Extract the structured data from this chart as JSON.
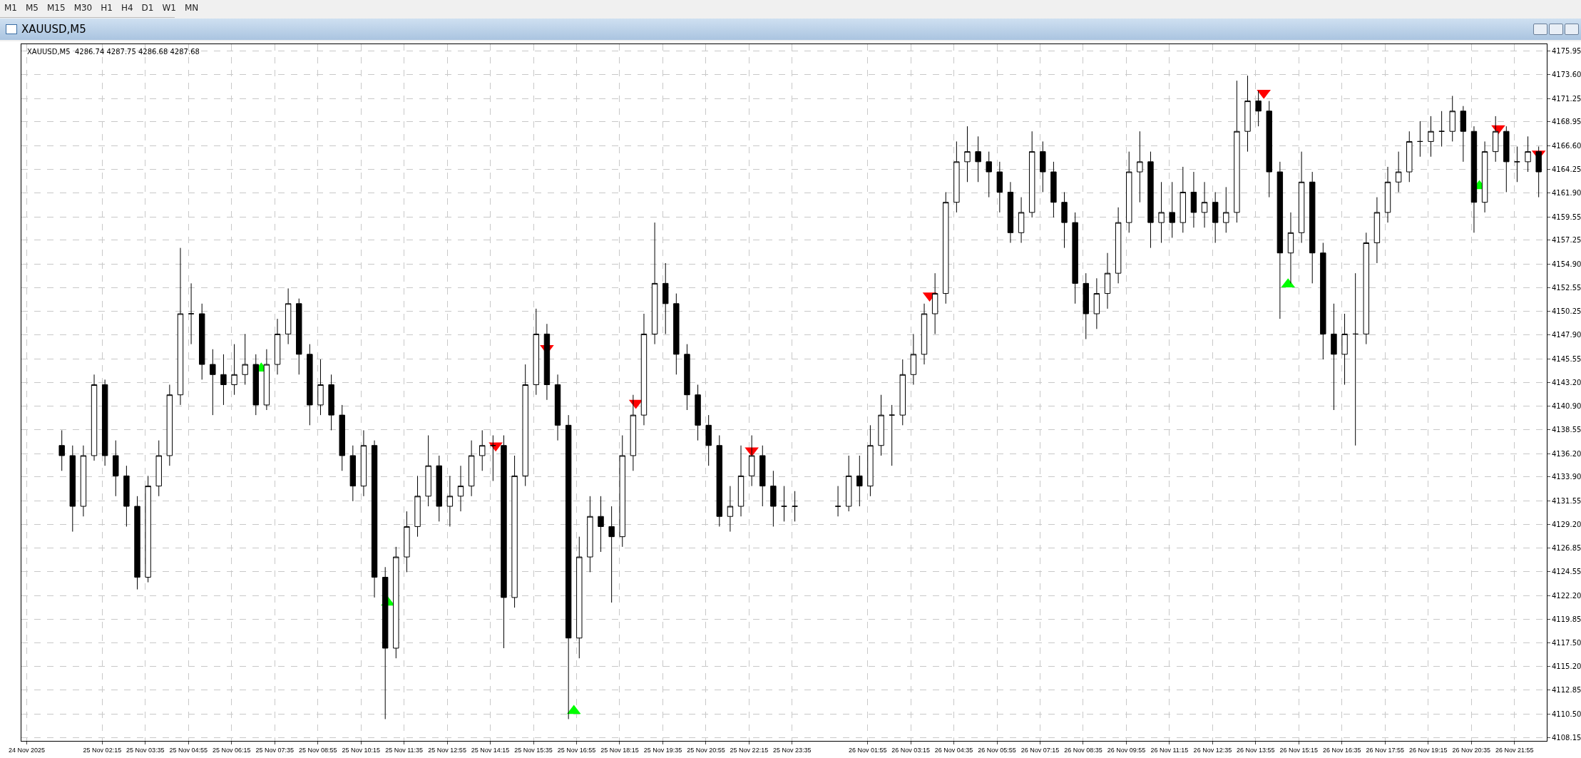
{
  "chart_data": {
    "type": "candlestick",
    "title": "XAUUSD,M5",
    "subtitle": "XAUUSD,M5  4286.74 4287.75 4286.68 4287.68",
    "annotations": [
      "M1",
      "M5",
      "M15",
      "M30",
      "H1",
      "H4",
      "D1",
      "W1",
      "MN"
    ],
    "grid": true,
    "xlim": [
      "2025-11-24T23:45",
      "2025-11-26T22:55"
    ],
    "xticks": [
      {
        "value": "2025-11-24T23:55",
        "label": "24 Nov 2025"
      },
      {
        "value": "2025-11-25T02:15",
        "label": "25 Nov 02:15"
      },
      {
        "value": "2025-11-25T03:35",
        "label": "25 Nov 03:35"
      },
      {
        "value": "2025-11-25T04:55",
        "label": "25 Nov 04:55"
      },
      {
        "value": "2025-11-25T06:15",
        "label": "25 Nov 06:15"
      },
      {
        "value": "2025-11-25T07:35",
        "label": "25 Nov 07:35"
      },
      {
        "value": "2025-11-25T08:55",
        "label": "25 Nov 08:55"
      },
      {
        "value": "2025-11-25T10:15",
        "label": "25 Nov 10:15"
      },
      {
        "value": "2025-11-25T11:35",
        "label": "25 Nov 11:35"
      },
      {
        "value": "2025-11-25T12:55",
        "label": "25 Nov 12:55"
      },
      {
        "value": "2025-11-25T14:15",
        "label": "25 Nov 14:15"
      },
      {
        "value": "2025-11-25T15:35",
        "label": "25 Nov 15:35"
      },
      {
        "value": "2025-11-25T16:55",
        "label": "25 Nov 16:55"
      },
      {
        "value": "2025-11-25T18:15",
        "label": "25 Nov 18:15"
      },
      {
        "value": "2025-11-25T19:35",
        "label": "25 Nov 19:35"
      },
      {
        "value": "2025-11-25T20:55",
        "label": "25 Nov 20:55"
      },
      {
        "value": "2025-11-25T22:15",
        "label": "25 Nov 22:15"
      },
      {
        "value": "2025-11-25T23:35",
        "label": "25 Nov 23:35"
      },
      {
        "value": "2025-11-26T01:55",
        "label": "26 Nov 01:55"
      },
      {
        "value": "2025-11-26T03:15",
        "label": "26 Nov 03:15"
      },
      {
        "value": "2025-11-26T04:35",
        "label": "26 Nov 04:35"
      },
      {
        "value": "2025-11-26T05:55",
        "label": "26 Nov 05:55"
      },
      {
        "value": "2025-11-26T07:15",
        "label": "26 Nov 07:15"
      },
      {
        "value": "2025-11-26T08:35",
        "label": "26 Nov 08:35"
      },
      {
        "value": "2025-11-26T09:55",
        "label": "26 Nov 09:55"
      },
      {
        "value": "2025-11-26T11:15",
        "label": "26 Nov 11:15"
      },
      {
        "value": "2025-11-26T12:35",
        "label": "26 Nov 12:35"
      },
      {
        "value": "2025-11-26T13:55",
        "label": "26 Nov 13:55"
      },
      {
        "value": "2025-11-26T15:15",
        "label": "26 Nov 15:15"
      },
      {
        "value": "2025-11-26T16:35",
        "label": "26 Nov 16:35"
      },
      {
        "value": "2025-11-26T17:55",
        "label": "26 Nov 17:55"
      },
      {
        "value": "2025-11-26T19:15",
        "label": "26 Nov 19:15"
      },
      {
        "value": "2025-11-26T20:35",
        "label": "26 Nov 20:35"
      },
      {
        "value": "2025-11-26T21:55",
        "label": "26 Nov 21:55"
      }
    ],
    "ylim": [
      4107.85,
      4176.6
    ],
    "yticks": [
      4175.95,
      {
        "value": 4173.6,
        "label": "4173.60"
      },
      4171.25,
      4168.95,
      {
        "value": 4166.6,
        "label": "4166.60"
      },
      4164.25,
      {
        "value": 4161.9,
        "label": "4161.90"
      },
      4159.55,
      4157.25,
      {
        "value": 4154.9,
        "label": "4154.90"
      },
      4152.55,
      4150.25,
      {
        "value": 4147.9,
        "label": "4147.90"
      },
      4145.55,
      {
        "value": 4143.2,
        "label": "4143.20"
      },
      {
        "value": 4140.9,
        "label": "4140.90"
      },
      4138.55,
      {
        "value": 4136.2,
        "label": "4136.20"
      },
      {
        "value": 4133.9,
        "label": "4133.90"
      },
      4131.55,
      {
        "value": 4129.2,
        "label": "4129.20"
      },
      4126.85,
      4124.55,
      {
        "value": 4122.2,
        "label": "4122.20"
      },
      4119.85,
      {
        "value": 4117.5,
        "label": "4117.50"
      },
      {
        "value": 4115.2,
        "label": "4115.20"
      },
      4112.85,
      {
        "value": 4110.5,
        "label": "4110.50"
      },
      4108.15
    ],
    "series": [
      {
        "color": "#000000",
        "x": [
          "2025-11-25T01:00",
          "2025-11-25T01:20",
          "2025-11-25T01:40",
          "2025-11-25T02:00",
          "2025-11-25T02:20",
          "2025-11-25T02:40",
          "2025-11-25T03:00",
          "2025-11-25T03:20",
          "2025-11-25T03:40",
          "2025-11-25T04:00",
          "2025-11-25T04:20",
          "2025-11-25T04:40",
          "2025-11-25T05:00",
          "2025-11-25T05:20",
          "2025-11-25T05:40",
          "2025-11-25T06:00",
          "2025-11-25T06:20",
          "2025-11-25T06:40",
          "2025-11-25T07:00",
          "2025-11-25T07:20",
          "2025-11-25T07:40",
          "2025-11-25T08:00",
          "2025-11-25T08:20",
          "2025-11-25T08:40",
          "2025-11-25T09:00",
          "2025-11-25T09:20",
          "2025-11-25T09:40",
          "2025-11-25T10:00",
          "2025-11-25T10:20",
          "2025-11-25T10:40",
          "2025-11-25T11:00",
          "2025-11-25T11:20",
          "2025-11-25T11:40",
          "2025-11-25T12:00",
          "2025-11-25T12:20",
          "2025-11-25T12:40",
          "2025-11-25T13:00",
          "2025-11-25T13:20",
          "2025-11-25T13:40",
          "2025-11-25T14:00",
          "2025-11-25T14:20",
          "2025-11-25T14:40",
          "2025-11-25T15:00",
          "2025-11-25T15:20",
          "2025-11-25T15:40",
          "2025-11-25T16:00",
          "2025-11-25T16:20",
          "2025-11-25T16:40",
          "2025-11-25T17:00",
          "2025-11-25T17:20",
          "2025-11-25T17:40",
          "2025-11-25T18:00",
          "2025-11-25T18:20",
          "2025-11-25T18:40",
          "2025-11-25T19:00",
          "2025-11-25T19:20",
          "2025-11-25T19:40",
          "2025-11-25T20:00",
          "2025-11-25T20:20",
          "2025-11-25T20:40",
          "2025-11-25T21:00",
          "2025-11-25T21:20",
          "2025-11-25T21:40",
          "2025-11-25T22:00",
          "2025-11-25T22:20",
          "2025-11-25T22:40",
          "2025-11-25T23:00",
          "2025-11-25T23:20",
          "2025-11-25T23:40",
          "2025-11-26T01:00",
          "2025-11-26T01:20",
          "2025-11-26T01:40",
          "2025-11-26T02:00",
          "2025-11-26T02:20",
          "2025-11-26T02:40",
          "2025-11-26T03:00",
          "2025-11-26T03:20",
          "2025-11-26T03:40",
          "2025-11-26T04:00",
          "2025-11-26T04:20",
          "2025-11-26T04:40",
          "2025-11-26T05:00",
          "2025-11-26T05:20",
          "2025-11-26T05:40",
          "2025-11-26T06:00",
          "2025-11-26T06:20",
          "2025-11-26T06:40",
          "2025-11-26T07:00",
          "2025-11-26T07:20",
          "2025-11-26T07:40",
          "2025-11-26T08:00",
          "2025-11-26T08:20",
          "2025-11-26T08:40",
          "2025-11-26T09:00",
          "2025-11-26T09:20",
          "2025-11-26T09:40",
          "2025-11-26T10:00",
          "2025-11-26T10:20",
          "2025-11-26T10:40",
          "2025-11-26T11:00",
          "2025-11-26T11:20",
          "2025-11-26T11:40",
          "2025-11-26T12:00",
          "2025-11-26T12:20",
          "2025-11-26T12:40",
          "2025-11-26T13:00",
          "2025-11-26T13:20",
          "2025-11-26T13:40",
          "2025-11-26T14:00",
          "2025-11-26T14:20",
          "2025-11-26T14:40",
          "2025-11-26T15:00",
          "2025-11-26T15:20",
          "2025-11-26T15:40",
          "2025-11-26T16:00",
          "2025-11-26T16:20",
          "2025-11-26T16:40",
          "2025-11-26T17:00",
          "2025-11-26T17:20",
          "2025-11-26T17:40",
          "2025-11-26T18:00",
          "2025-11-26T18:20",
          "2025-11-26T18:40",
          "2025-11-26T19:00",
          "2025-11-26T19:20",
          "2025-11-26T19:40",
          "2025-11-26T20:00",
          "2025-11-26T20:20",
          "2025-11-26T20:40",
          "2025-11-26T21:00",
          "2025-11-26T21:20",
          "2025-11-26T21:40",
          "2025-11-26T22:00",
          "2025-11-26T22:20",
          "2025-11-26T22:40"
        ],
        "ohlc": [
          [
            4137,
            4138.5,
            4134.5,
            4136
          ],
          [
            4136,
            4137,
            4128.5,
            4131
          ],
          [
            4131,
            4137,
            4130,
            4136
          ],
          [
            4136,
            4144,
            4135.5,
            4143
          ],
          [
            4143,
            4143.5,
            4135,
            4136
          ],
          [
            4136,
            4137.5,
            4132,
            4134
          ],
          [
            4134,
            4135,
            4129,
            4131
          ],
          [
            4131,
            4132,
            4122.8,
            4124
          ],
          [
            4124,
            4134,
            4123.5,
            4133
          ],
          [
            4133,
            4137.5,
            4132,
            4136
          ],
          [
            4136,
            4143,
            4135,
            4142
          ],
          [
            4142,
            4156.5,
            4141,
            4150
          ],
          [
            4150,
            4153,
            4147,
            4150
          ],
          [
            4150,
            4151,
            4143.5,
            4145
          ],
          [
            4145,
            4146.5,
            4140,
            4144
          ],
          [
            4144,
            4146,
            4141,
            4143
          ],
          [
            4143,
            4147,
            4142,
            4144
          ],
          [
            4144,
            4148,
            4143,
            4145
          ],
          [
            4145,
            4146,
            4140,
            4141
          ],
          [
            4141,
            4146.5,
            4140.5,
            4145
          ],
          [
            4145,
            4149.5,
            4144,
            4148
          ],
          [
            4148,
            4152.5,
            4147,
            4151
          ],
          [
            4151,
            4151.5,
            4144,
            4146
          ],
          [
            4146,
            4147,
            4139,
            4141
          ],
          [
            4141,
            4145.5,
            4140,
            4143
          ],
          [
            4143,
            4144,
            4138.5,
            4140
          ],
          [
            4140,
            4141,
            4134.5,
            4136
          ],
          [
            4136,
            4137,
            4131.5,
            4133
          ],
          [
            4133,
            4138.5,
            4132,
            4137
          ],
          [
            4137,
            4137.5,
            4122,
            4124
          ],
          [
            4124,
            4125,
            4110,
            4117
          ],
          [
            4117,
            4127,
            4116,
            4126
          ],
          [
            4126,
            4130.5,
            4124.5,
            4129
          ],
          [
            4129,
            4134,
            4128,
            4132
          ],
          [
            4132,
            4138,
            4131,
            4135
          ],
          [
            4135,
            4136,
            4129.5,
            4131
          ],
          [
            4131,
            4134,
            4129,
            4132
          ],
          [
            4132,
            4135,
            4130.5,
            4133
          ],
          [
            4133,
            4137.5,
            4132,
            4136
          ],
          [
            4136,
            4138.5,
            4134.5,
            4137
          ],
          [
            4137,
            4138,
            4133.5,
            4137
          ],
          [
            4137,
            4138,
            4117,
            4122
          ],
          [
            4122,
            4136,
            4121,
            4134
          ],
          [
            4134,
            4145,
            4133,
            4143
          ],
          [
            4143,
            4150.5,
            4142,
            4148
          ],
          [
            4148,
            4149,
            4141.5,
            4143
          ],
          [
            4143,
            4144,
            4137.5,
            4139
          ],
          [
            4139,
            4140,
            4110,
            4118
          ],
          [
            4118,
            4128,
            4116,
            4126
          ],
          [
            4126,
            4132,
            4124.5,
            4130
          ],
          [
            4130,
            4132,
            4126.5,
            4129
          ],
          [
            4129,
            4131,
            4121.5,
            4128
          ],
          [
            4128,
            4138,
            4127,
            4136
          ],
          [
            4136,
            4142,
            4134.5,
            4140
          ],
          [
            4140,
            4150,
            4139,
            4148
          ],
          [
            4148,
            4159,
            4147,
            4153
          ],
          [
            4153,
            4155,
            4148,
            4151
          ],
          [
            4151,
            4152,
            4144,
            4146
          ],
          [
            4146,
            4147,
            4140.5,
            4142
          ],
          [
            4142,
            4143,
            4137.5,
            4139
          ],
          [
            4139,
            4140,
            4135,
            4137
          ],
          [
            4137,
            4138,
            4129,
            4130
          ],
          [
            4130,
            4133,
            4128.5,
            4131
          ],
          [
            4131,
            4137,
            4130,
            4134
          ],
          [
            4134,
            4138,
            4133,
            4136
          ],
          [
            4136,
            4137,
            4131,
            4133
          ],
          [
            4133,
            4134.5,
            4129,
            4131
          ],
          [
            4131,
            4133,
            4129.5,
            4131
          ],
          [
            4131,
            4132.5,
            4129.5,
            4131
          ],
          [
            4131,
            4133,
            4130,
            4131
          ],
          [
            4131,
            4136,
            4130.5,
            4134
          ],
          [
            4134,
            4136,
            4131,
            4133
          ],
          [
            4133,
            4139,
            4132,
            4137
          ],
          [
            4137,
            4142,
            4136,
            4140
          ],
          [
            4140,
            4141,
            4135,
            4140
          ],
          [
            4140,
            4145.5,
            4139,
            4144
          ],
          [
            4144,
            4148,
            4143,
            4146
          ],
          [
            4146,
            4151,
            4145,
            4150
          ],
          [
            4150,
            4154,
            4148,
            4152
          ],
          [
            4152,
            4162,
            4151,
            4161
          ],
          [
            4161,
            4167,
            4160,
            4165
          ],
          [
            4165,
            4168.5,
            4163,
            4166
          ],
          [
            4166,
            4167.5,
            4163,
            4165
          ],
          [
            4165,
            4166,
            4161.5,
            4164
          ],
          [
            4164,
            4165,
            4160,
            4162
          ],
          [
            4162,
            4163,
            4157,
            4158
          ],
          [
            4158,
            4161.5,
            4157,
            4160
          ],
          [
            4160,
            4168,
            4159.5,
            4166
          ],
          [
            4166,
            4167,
            4162,
            4164
          ],
          [
            4164,
            4165,
            4159.5,
            4161
          ],
          [
            4161,
            4162,
            4156.5,
            4159
          ],
          [
            4159,
            4160,
            4151,
            4153
          ],
          [
            4153,
            4154,
            4147.5,
            4150
          ],
          [
            4150,
            4153.5,
            4148.5,
            4152
          ],
          [
            4152,
            4156,
            4150.5,
            4154
          ],
          [
            4154,
            4160.5,
            4153,
            4159
          ],
          [
            4159,
            4166,
            4158,
            4164
          ],
          [
            4164,
            4168,
            4161,
            4165
          ],
          [
            4165,
            4166,
            4156.5,
            4159
          ],
          [
            4159,
            4163,
            4157,
            4160
          ],
          [
            4160,
            4163,
            4157.5,
            4159
          ],
          [
            4159,
            4164.5,
            4158,
            4162
          ],
          [
            4162,
            4164,
            4158.5,
            4160
          ],
          [
            4160,
            4163,
            4158.5,
            4161
          ],
          [
            4161,
            4162,
            4157,
            4159
          ],
          [
            4159,
            4162.5,
            4158,
            4160
          ],
          [
            4160,
            4173,
            4159,
            4168
          ],
          [
            4168,
            4173.5,
            4166,
            4171
          ],
          [
            4171,
            4172,
            4168.5,
            4170
          ],
          [
            4170,
            4171,
            4161.5,
            4164
          ],
          [
            4164,
            4165,
            4149.5,
            4156
          ],
          [
            4156,
            4160,
            4153,
            4158
          ],
          [
            4158,
            4166,
            4157,
            4163
          ],
          [
            4163,
            4164,
            4153,
            4156
          ],
          [
            4156,
            4157,
            4145.5,
            4148
          ],
          [
            4148,
            4151,
            4140.5,
            4146
          ],
          [
            4146,
            4150,
            4143,
            4148
          ],
          [
            4148,
            4154,
            4137,
            4148
          ],
          [
            4148,
            4158,
            4147,
            4157
          ],
          [
            4157,
            4161.5,
            4155,
            4160
          ],
          [
            4160,
            4164.5,
            4159,
            4163
          ],
          [
            4163,
            4166,
            4162,
            4164
          ],
          [
            4164,
            4168,
            4163,
            4167
          ],
          [
            4167,
            4169,
            4165.5,
            4167
          ],
          [
            4167,
            4169.5,
            4165.5,
            4168
          ],
          [
            4168,
            4170,
            4166.5,
            4168
          ],
          [
            4168,
            4171.5,
            4167,
            4170
          ],
          [
            4170,
            4170.5,
            4165,
            4168
          ],
          [
            4168,
            4168.5,
            4158,
            4161
          ],
          [
            4161,
            4167,
            4160,
            4166
          ],
          [
            4166,
            4169.5,
            4165,
            4168
          ],
          [
            4168,
            4168.5,
            4162,
            4165
          ],
          [
            4165,
            4166.5,
            4163,
            4165
          ],
          [
            4165,
            4167.5,
            4164,
            4166
          ],
          [
            4166,
            4166.5,
            4161.5,
            4164
          ]
        ]
      },
      {
        "type": "scatter",
        "marker": "triangle",
        "color": "#00ff00",
        "x": [
          "2025-11-25T07:10",
          "2025-11-25T11:05",
          "2025-11-25T16:50",
          "2025-11-26T14:55",
          "2025-11-26T20:50"
        ],
        "values": [
          4144.6,
          4121.5,
          4110.8,
          4152.9,
          4162.6
        ]
      },
      {
        "type": "scatter",
        "marker": "triangle-down",
        "color": "#ff0000",
        "x": [
          "2025-11-25T14:25",
          "2025-11-25T16:00",
          "2025-11-25T18:45",
          "2025-11-25T22:20",
          "2025-11-26T03:50",
          "2025-11-26T14:10",
          "2025-11-26T21:25",
          "2025-11-26T22:40"
        ],
        "values": [
          4137,
          4146.6,
          4141.2,
          4136.5,
          4151.8,
          4171.8,
          4168.3,
          4165.8
        ]
      }
    ]
  }
}
